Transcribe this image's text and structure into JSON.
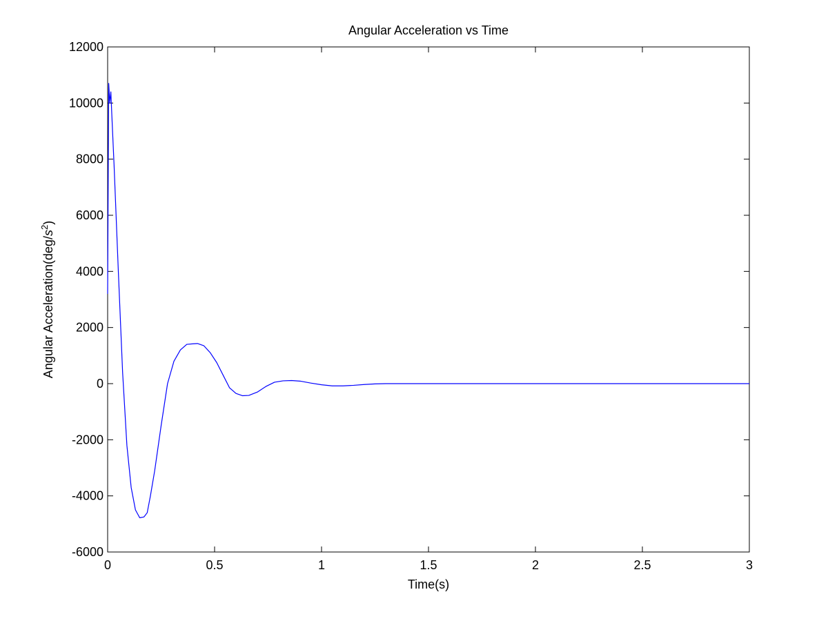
{
  "chart_data": {
    "type": "line",
    "title": "Angular Acceleration vs Time",
    "xlabel": "Time(s)",
    "ylabel_main": "Angular Acceleration(deg/",
    "ylabel_sym": "s",
    "ylabel_sup": "2",
    "ylabel_close": ")",
    "xlim": [
      0,
      3
    ],
    "ylim": [
      -6000,
      12000
    ],
    "xticks": [
      0,
      0.5,
      1,
      1.5,
      2,
      2.5,
      3
    ],
    "xtick_labels": [
      "0",
      "0.5",
      "1",
      "1.5",
      "2",
      "2.5",
      "3"
    ],
    "yticks": [
      -6000,
      -4000,
      -2000,
      0,
      2000,
      4000,
      6000,
      8000,
      10000,
      12000
    ],
    "ytick_labels": [
      "-6000",
      "-4000",
      "-2000",
      "0",
      "2000",
      "4000",
      "6000",
      "8000",
      "10000",
      "12000"
    ],
    "grid": false,
    "line_color": "#0000ff",
    "series": [
      {
        "x": [
          0,
          0.005,
          0.01,
          0.015,
          0.02,
          0.03,
          0.05,
          0.07,
          0.09,
          0.11,
          0.13,
          0.15,
          0.17,
          0.185,
          0.2,
          0.22,
          0.25,
          0.28,
          0.31,
          0.34,
          0.37,
          0.4,
          0.42,
          0.45,
          0.48,
          0.51,
          0.54,
          0.57,
          0.6,
          0.63,
          0.66,
          0.7,
          0.74,
          0.78,
          0.82,
          0.86,
          0.9,
          0.95,
          1.0,
          1.05,
          1.1,
          1.15,
          1.2,
          1.25,
          1.3,
          1.4,
          1.6,
          2.0,
          2.5,
          3.0
        ],
        "y": [
          3200,
          10700,
          10000,
          10400,
          9500,
          7800,
          4000,
          400,
          -2200,
          -3700,
          -4500,
          -4780,
          -4750,
          -4600,
          -4000,
          -3100,
          -1500,
          0,
          800,
          1200,
          1400,
          1420,
          1430,
          1350,
          1100,
          750,
          300,
          -150,
          -350,
          -430,
          -420,
          -300,
          -100,
          50,
          100,
          110,
          90,
          20,
          -40,
          -80,
          -80,
          -60,
          -30,
          -10,
          0,
          0,
          0,
          0,
          0,
          0
        ]
      }
    ]
  }
}
